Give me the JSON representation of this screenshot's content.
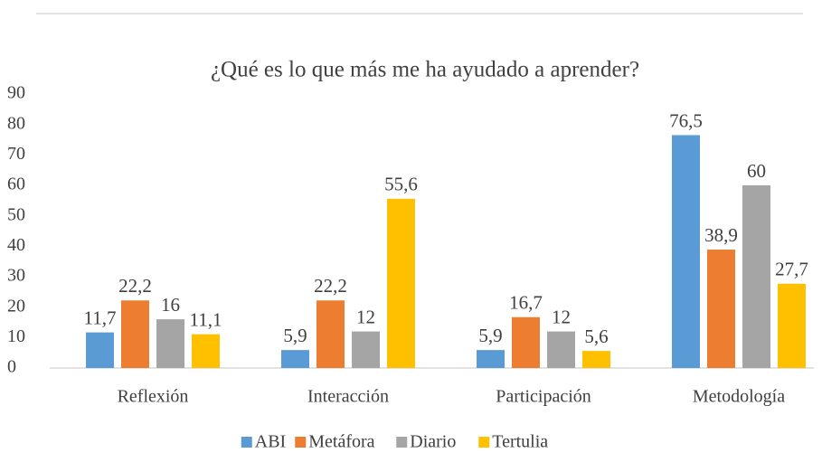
{
  "chart_data": {
    "type": "bar",
    "title": "¿Qué es lo que más me ha ayudado a aprender?",
    "categories": [
      "Reflexión",
      "Interacción",
      "Participación",
      "Metodología"
    ],
    "series": [
      {
        "name": "ABI",
        "color": "#5b9bd5",
        "values": [
          11.7,
          5.9,
          5.9,
          76.5
        ],
        "value_labels": [
          "11,7",
          "5,9",
          "5,9",
          "76,5"
        ]
      },
      {
        "name": "Metáfora",
        "color": "#ed7d31",
        "values": [
          22.2,
          22.2,
          16.7,
          38.9
        ],
        "value_labels": [
          "22,2",
          "22,2",
          "16,7",
          "38,9"
        ]
      },
      {
        "name": "Diario",
        "color": "#a5a5a5",
        "values": [
          16,
          12,
          12,
          60
        ],
        "value_labels": [
          "16",
          "12",
          "12",
          "60"
        ]
      },
      {
        "name": "Tertulia",
        "color": "#ffc000",
        "values": [
          11.1,
          55.6,
          5.6,
          27.7
        ],
        "value_labels": [
          "11,1",
          "55,6",
          "5,6",
          "27,7"
        ]
      }
    ],
    "ylim": [
      0,
      90
    ],
    "yticks": [
      0,
      10,
      20,
      30,
      40,
      50,
      60,
      70,
      80,
      90
    ],
    "grid": false,
    "legend": "bottom"
  }
}
